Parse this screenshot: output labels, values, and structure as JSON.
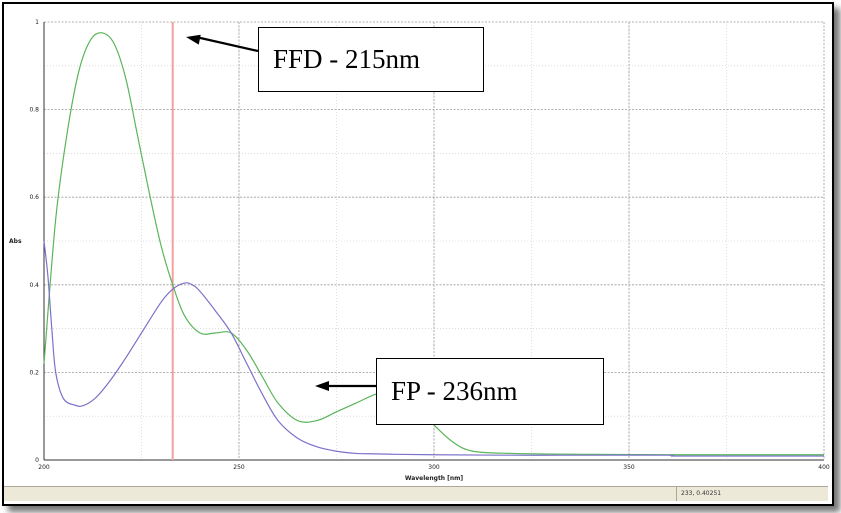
{
  "chart_data": {
    "type": "line",
    "xlabel": "Wavelength [nm]",
    "ylabel": "Abs",
    "xlim": [
      200,
      400
    ],
    "ylim": [
      0,
      1
    ],
    "x_ticks": [
      200,
      250,
      300,
      350,
      400
    ],
    "y_ticks": [
      0,
      0.2,
      0.4,
      0.6,
      0.8,
      1
    ],
    "x_tick_labels": [
      "200",
      "250",
      "300",
      "350",
      "400"
    ],
    "y_tick_labels": [
      "0",
      "0.2",
      "0.4",
      "0.6",
      "0.8",
      "1"
    ],
    "grid": true,
    "cursor_x": 233,
    "series": [
      {
        "color": "#5ab55a",
        "x": [
          200,
          203,
          206,
          209,
          212,
          215,
          218,
          221,
          224,
          227,
          230,
          233,
          236,
          240,
          244,
          248,
          252,
          256,
          260,
          265,
          270,
          275,
          280,
          285,
          290,
          295,
          300,
          305,
          310,
          320,
          340,
          360,
          380,
          400
        ],
        "y": [
          0.22,
          0.55,
          0.75,
          0.89,
          0.96,
          0.975,
          0.95,
          0.87,
          0.74,
          0.61,
          0.49,
          0.4,
          0.33,
          0.29,
          0.29,
          0.29,
          0.25,
          0.19,
          0.13,
          0.09,
          0.09,
          0.11,
          0.13,
          0.15,
          0.16,
          0.13,
          0.08,
          0.04,
          0.02,
          0.015,
          0.013,
          0.012,
          0.012,
          0.012
        ]
      },
      {
        "color": "#7b72c9",
        "x": [
          200,
          201,
          202,
          203,
          205,
          208,
          210,
          213,
          216,
          220,
          225,
          230,
          233,
          236,
          238,
          240,
          244,
          248,
          252,
          256,
          260,
          265,
          270,
          275,
          280,
          285,
          290,
          300,
          320,
          340,
          360,
          362,
          380,
          400
        ],
        "y": [
          0.5,
          0.42,
          0.3,
          0.2,
          0.14,
          0.125,
          0.124,
          0.14,
          0.17,
          0.22,
          0.29,
          0.36,
          0.39,
          0.404,
          0.4,
          0.385,
          0.34,
          0.29,
          0.22,
          0.15,
          0.09,
          0.05,
          0.03,
          0.02,
          0.015,
          0.014,
          0.013,
          0.012,
          0.011,
          0.011,
          0.011,
          0.009,
          0.009,
          0.009
        ]
      }
    ],
    "annotations": [
      {
        "text": "FFD - 215nm"
      },
      {
        "text": "FP - 236nm"
      }
    ]
  },
  "status": {
    "cursor_readout": "233, 0.40251"
  },
  "colors": {
    "cursor_line": "#f4a0a0",
    "grid": "#9a9a9a"
  }
}
